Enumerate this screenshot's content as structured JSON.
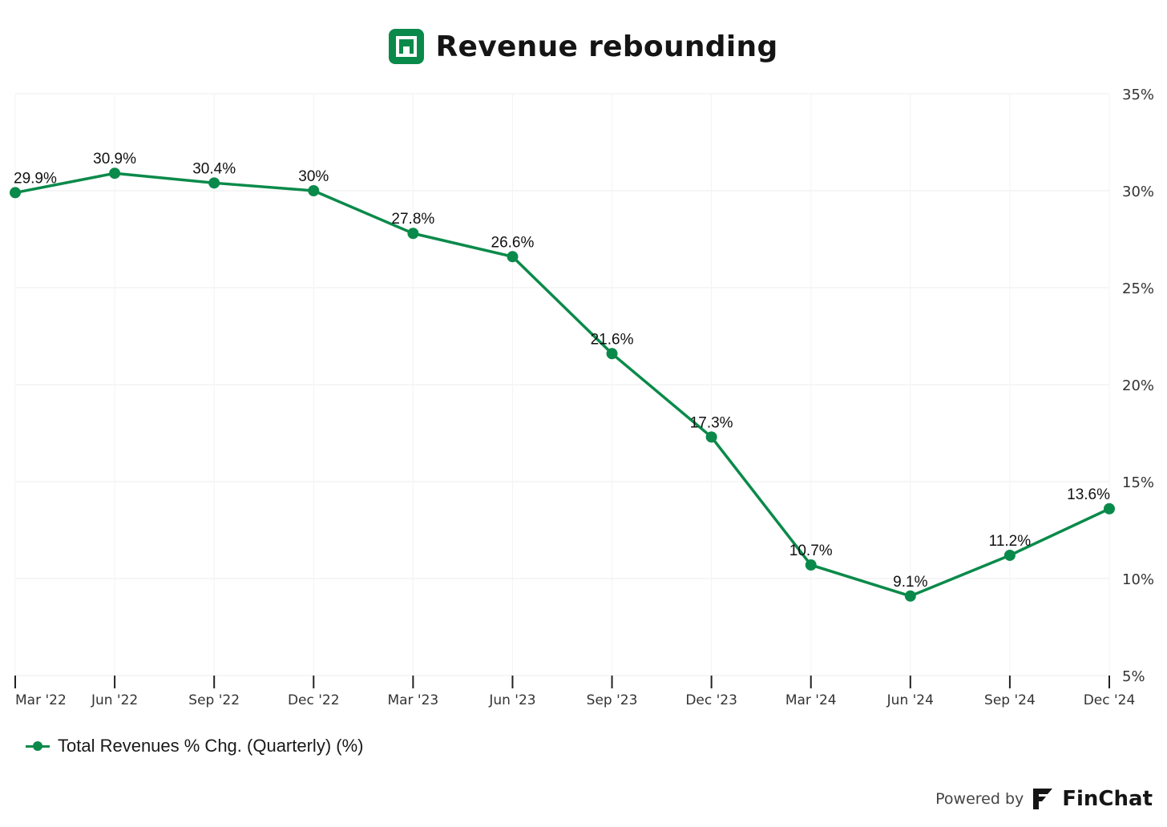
{
  "header": {
    "title": "Revenue rebounding",
    "logo_icon": "square-logo-icon"
  },
  "chart_data": {
    "type": "line",
    "title": "Revenue rebounding",
    "categories": [
      "Mar '22",
      "Jun '22",
      "Sep '22",
      "Dec '22",
      "Mar '23",
      "Jun '23",
      "Sep '23",
      "Dec '23",
      "Mar '24",
      "Jun '24",
      "Sep '24",
      "Dec '24"
    ],
    "series": [
      {
        "name": "Total Revenues % Chg. (Quarterly) (%)",
        "values": [
          29.9,
          30.9,
          30.4,
          30.0,
          27.8,
          26.6,
          21.6,
          17.3,
          10.7,
          9.1,
          11.2,
          13.6
        ],
        "labels": [
          "29.9%",
          "30.9%",
          "30.4%",
          "30%",
          "27.8%",
          "26.6%",
          "21.6%",
          "17.3%",
          "10.7%",
          "9.1%",
          "11.2%",
          "13.6%"
        ],
        "color": "#0a8a4a"
      }
    ],
    "ylim": [
      5,
      35
    ],
    "yticks": [
      "35%",
      "30%",
      "25%",
      "20%",
      "15%",
      "10%",
      "5%"
    ],
    "ytick_values": [
      35,
      30,
      25,
      20,
      15,
      10,
      5
    ],
    "y_axis_side": "right",
    "grid": true,
    "legend": "bottom-left"
  },
  "legend": {
    "label": "Total Revenues % Chg. (Quarterly) (%)"
  },
  "footer": {
    "powered_by": "Powered by",
    "brand": "FinChat",
    "brand_icon": "finchat-logo-icon"
  }
}
